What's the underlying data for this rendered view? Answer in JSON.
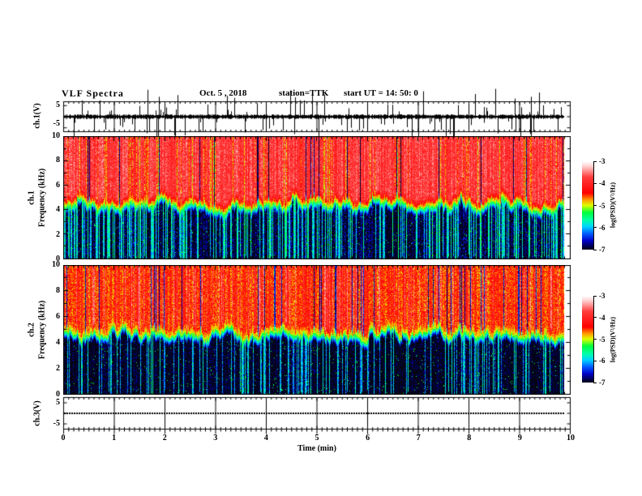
{
  "header": {
    "title": "VLF Spectra",
    "date": "Oct. 5 , 2018",
    "station": "station=TTK",
    "start_ut": "start UT =  14: 50: 0"
  },
  "xaxis": {
    "label": "Time (min)",
    "tick_labels": [
      "0",
      "1",
      "2",
      "3",
      "4",
      "5",
      "6",
      "7",
      "8",
      "9",
      "10"
    ]
  },
  "panels": {
    "ch1_wave": {
      "axis_label": "ch.1(V)",
      "tick_labels": [
        "5",
        "-5"
      ]
    },
    "ch1_spec": {
      "axis_label_ch": "ch.1",
      "axis_label_freq": "Frequency (kHz)",
      "tick_labels": [
        "10",
        "8",
        "6",
        "4",
        "2",
        "0"
      ]
    },
    "ch2_spec": {
      "axis_label_ch": "ch.2",
      "axis_label_freq": "Frequency (kHz)",
      "tick_labels": [
        "10",
        "8",
        "6",
        "4",
        "2",
        "0"
      ]
    },
    "ch3_wave": {
      "axis_label": "ch.3(V)",
      "tick_labels": [
        "5",
        "-5"
      ]
    }
  },
  "colorbar": {
    "label": "log(PSD)(V²/Hz)",
    "tick_labels": [
      "-3",
      "-4",
      "-5",
      "-6",
      "-7"
    ],
    "range": [
      -3,
      -7
    ],
    "stops": [
      {
        "t": 0.0,
        "color": "#ffffff"
      },
      {
        "t": 0.05,
        "color": "#ffd7d7"
      },
      {
        "t": 0.18,
        "color": "#ff3c3c"
      },
      {
        "t": 0.36,
        "color": "#ff0000"
      },
      {
        "t": 0.44,
        "color": "#ffa000"
      },
      {
        "t": 0.5,
        "color": "#dcff00"
      },
      {
        "t": 0.58,
        "color": "#00ff3c"
      },
      {
        "t": 0.67,
        "color": "#00ffaa"
      },
      {
        "t": 0.74,
        "color": "#00d2ff"
      },
      {
        "t": 0.82,
        "color": "#005aff"
      },
      {
        "t": 0.9,
        "color": "#0000c8"
      },
      {
        "t": 0.97,
        "color": "#000046"
      },
      {
        "t": 1.0,
        "color": "#050514"
      }
    ]
  },
  "chart_data": [
    {
      "type": "line",
      "name": "ch1_waveform",
      "ylabel": "ch.1(V)",
      "y_range": [
        -5,
        5
      ],
      "x_range_min": [
        0,
        10
      ],
      "x_data_end_min": 9.85,
      "x_tick_step_min": 1,
      "x_minor_step_min": 0.1,
      "signal": {
        "kind": "broadband-noise-with-impulses",
        "baseline_amplitude_v": 1.0,
        "spike_probability_per_column": 0.1,
        "spike_amplitude_v_max": 12
      }
    },
    {
      "type": "heatmap",
      "name": "ch1_spectrogram",
      "xlabel": "Time (min)",
      "ylabel": "ch.1 Frequency (kHz)",
      "x_range_min": [
        0,
        10
      ],
      "x_data_end_min": 9.85,
      "y_range_khz": [
        0,
        10
      ],
      "z_range_log_psd": [
        -7,
        -3
      ],
      "z_label": "log(PSD)(V²/Hz)",
      "structure": {
        "cutoff_khz": 4.2,
        "high_band": {
          "freq_khz": [
            4.5,
            10
          ],
          "level": -3.6,
          "streak_level": -4.7,
          "streak_prob": 0.1,
          "dark_line_level": -6.7,
          "dark_line_prob": 0.05
        },
        "transition": {
          "freq_khz": [
            3.8,
            4.5
          ],
          "level": -5.0
        },
        "low_band": {
          "freq_khz": [
            0,
            3.8
          ],
          "level": -6.7,
          "bright_col_level": -5.8,
          "bright_col_prob": 0.3,
          "black_col_prob": 0.25
        }
      }
    },
    {
      "type": "heatmap",
      "name": "ch2_spectrogram",
      "xlabel": "Time (min)",
      "ylabel": "ch.2 Frequency (kHz)",
      "x_range_min": [
        0,
        10
      ],
      "x_data_end_min": 9.85,
      "y_range_khz": [
        0,
        10
      ],
      "z_range_log_psd": [
        -7,
        -3
      ],
      "z_label": "log(PSD)(V²/Hz)",
      "structure": {
        "cutoff_khz": 4.5,
        "high_band": {
          "freq_khz": [
            4.8,
            10
          ],
          "level": -4.25,
          "streak_level": -3.7,
          "streak_prob": 0.17,
          "dark_line_level": -6.4,
          "dark_line_prob": 0.07
        },
        "transition": {
          "freq_khz": [
            4.0,
            4.8
          ],
          "level": -5.0
        },
        "low_band": {
          "freq_khz": [
            0,
            4.0
          ],
          "level": -6.9,
          "bright_col_level": -6.0,
          "bright_col_prob": 0.22,
          "black_col_prob": 0.35
        }
      }
    },
    {
      "type": "line",
      "name": "ch3_waveform",
      "ylabel": "ch.3(V)",
      "y_range": [
        -5,
        5
      ],
      "x_range_min": [
        0,
        10
      ],
      "x_data_end_min": 9.85,
      "signal": {
        "kind": "constant",
        "value_v": 0
      }
    }
  ]
}
